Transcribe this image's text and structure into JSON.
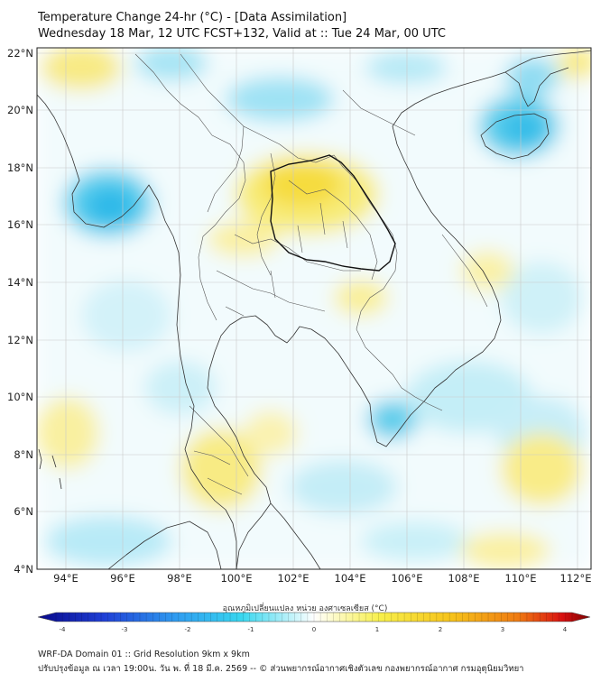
{
  "header": {
    "title_line1": "Temperature Change 24-hr (°C) - [Data Assimilation]",
    "title_line2": "Wednesday 18 Mar, 12 UTC FCST+132, Valid at :: Tue 24 Mar, 00 UTC"
  },
  "map": {
    "lat_labels": [
      "22°N",
      "20°N",
      "18°N",
      "16°N",
      "14°N",
      "12°N",
      "10°N",
      "8°N",
      "6°N",
      "4°N"
    ],
    "lon_labels": [
      "94°E",
      "96°E",
      "98°E",
      "100°E",
      "102°E",
      "104°E",
      "106°E",
      "108°E",
      "110°E",
      "112°E"
    ],
    "extent": {
      "lon_min": 93,
      "lon_max": 112.5,
      "lat_min": 4,
      "lat_max": 22.3
    }
  },
  "colorbar": {
    "title": "อุณหภูมิเปลี่ยนแปลง หน่วย องศาเซลเซียส (°C)",
    "ticks": [
      "-4",
      "-3",
      "-2",
      "-1",
      "0",
      "1",
      "2",
      "3",
      "4"
    ],
    "min": -4,
    "max": 4,
    "colors": [
      "#08088a",
      "#1f3fd6",
      "#2f9cf0",
      "#38d7ef",
      "#ffffff",
      "#f7ef4a",
      "#f6c21a",
      "#ef7a12",
      "#d81010",
      "#7a0000"
    ]
  },
  "footer": {
    "line1": "WRF-DA Domain 01 :: Grid Resolution 9km x 9km",
    "line2": "ปรับปรุงข้อมูล ณ เวลา 19:00น. วัน พ. ที่ 18 มี.ค. 2569 -- © ส่วนพยากรณ์อากาศเชิงตัวเลข กองพยากรณ์อากาศ กรมอุตุนิยมวิทยา"
  }
}
